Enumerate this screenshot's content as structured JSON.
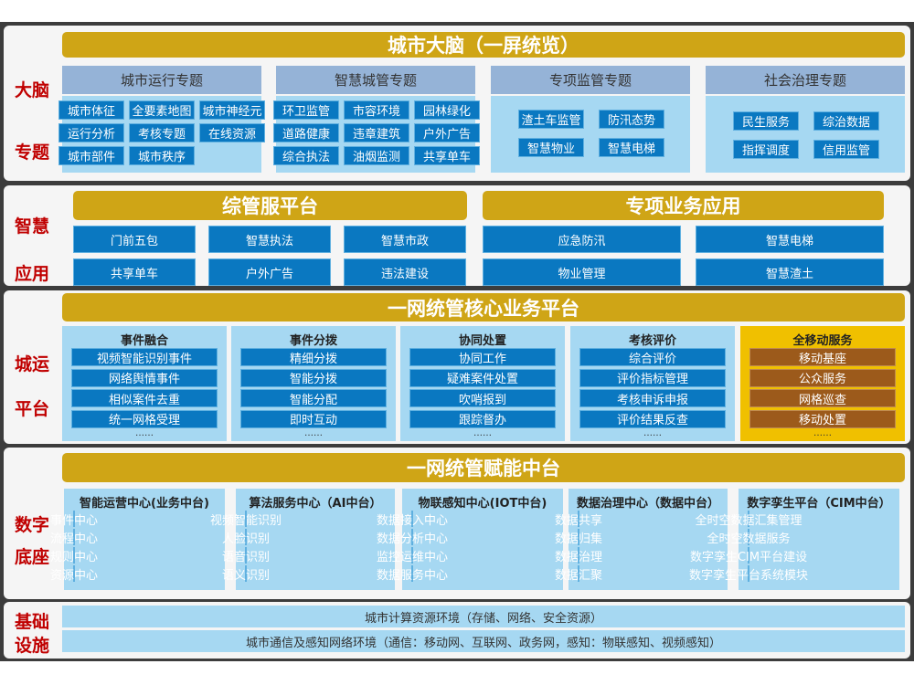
{
  "brain": {
    "side_label": [
      "大脑",
      "专题"
    ],
    "title": "城市大脑（一屏统览）",
    "categories": [
      {
        "title": "城市运行专题",
        "items": [
          "城市体征",
          "全要素地图",
          "城市神经元",
          "运行分析",
          "考核专题",
          "在线资源",
          "城市部件",
          "城市秩序"
        ]
      },
      {
        "title": "智慧城管专题",
        "items": [
          "环卫监管",
          "市容环境",
          "园林绿化",
          "道路健康",
          "违章建筑",
          "户外广告",
          "综合执法",
          "油烟监测",
          "共享单车"
        ]
      },
      {
        "title": "专项监管专题",
        "items": [
          "渣土车监管",
          "防汛态势",
          "智慧物业",
          "智慧电梯"
        ]
      },
      {
        "title": "社会治理专题",
        "items": [
          "民生服务",
          "综治数据",
          "指挥调度",
          "信用监管"
        ]
      }
    ]
  },
  "apps": {
    "side_label": [
      "智慧",
      "应用"
    ],
    "left": {
      "title": "综管服平台",
      "items": [
        "门前五包",
        "智慧执法",
        "智慧市政",
        "共享单车",
        "户外广告",
        "违法建设"
      ]
    },
    "right": {
      "title": "专项业务应用",
      "items": [
        "应急防汛",
        "智慧电梯",
        "物业管理",
        "智慧渣土"
      ]
    }
  },
  "ops": {
    "side_label": [
      "城运",
      "平台"
    ],
    "title": "一网统管核心业务平台",
    "more": "……",
    "columns": [
      {
        "title": "事件融合",
        "items": [
          "视频智能识别事件",
          "网络舆情事件",
          "相似案件去重",
          "统一网格受理"
        ]
      },
      {
        "title": "事件分拨",
        "items": [
          "精细分拨",
          "智能分拨",
          "智能分配",
          "即时互动"
        ]
      },
      {
        "title": "协同处置",
        "items": [
          "协同工作",
          "疑难案件处置",
          "吹哨报到",
          "跟踪督办"
        ]
      },
      {
        "title": "考核评价",
        "items": [
          "综合评价",
          "评价指标管理",
          "考核申诉申报",
          "评价结果反查"
        ]
      },
      {
        "title": "全移动服务",
        "items": [
          "移动基座",
          "公众服务",
          "网格巡查",
          "移动处置"
        ]
      }
    ]
  },
  "base": {
    "side_label": [
      "数字",
      "底座"
    ],
    "title": "一网统管赋能中台",
    "columns": [
      {
        "title": "智能运营中心(业务中台)",
        "items": [
          "事件中心",
          "流程中心",
          "规则中心",
          "资源中心"
        ]
      },
      {
        "title": "算法服务中心（AI中台）",
        "items": [
          "视频智能识别",
          "人脸识别",
          "语音识别",
          "语义识别"
        ]
      },
      {
        "title": "物联感知中心(IOT中台)",
        "items": [
          "数据接入中心",
          "数据分析中心",
          "监控运维中心",
          "数据服务中心"
        ]
      },
      {
        "title": "数据治理中心（数据中台）",
        "items": [
          "数据共享",
          "数据归集",
          "数据治理",
          "数据汇聚"
        ]
      },
      {
        "title": "数字孪生平台（CIM中台）",
        "items": [
          "全时空数据汇集管理",
          "全时空数据服务",
          "数字孪生CIM平台建设",
          "数字孪生平台系统模块"
        ]
      }
    ]
  },
  "infra": {
    "side_label": [
      "基础",
      "设施"
    ],
    "rows": [
      "城市计算资源环境（存储、网络、安全资源）",
      "城市通信及感知网络环境（通信：移动网、互联网、政务网，感知：物联感知、视频感知）"
    ]
  },
  "colors": {
    "gold": "#cfa516",
    "blue": "#0a78c1",
    "light": "#a6d8f2",
    "header": "#95b3d7",
    "red": "#c00000",
    "mobile_bg": "#f0c000",
    "mobile_item": "#9c5a1b"
  }
}
